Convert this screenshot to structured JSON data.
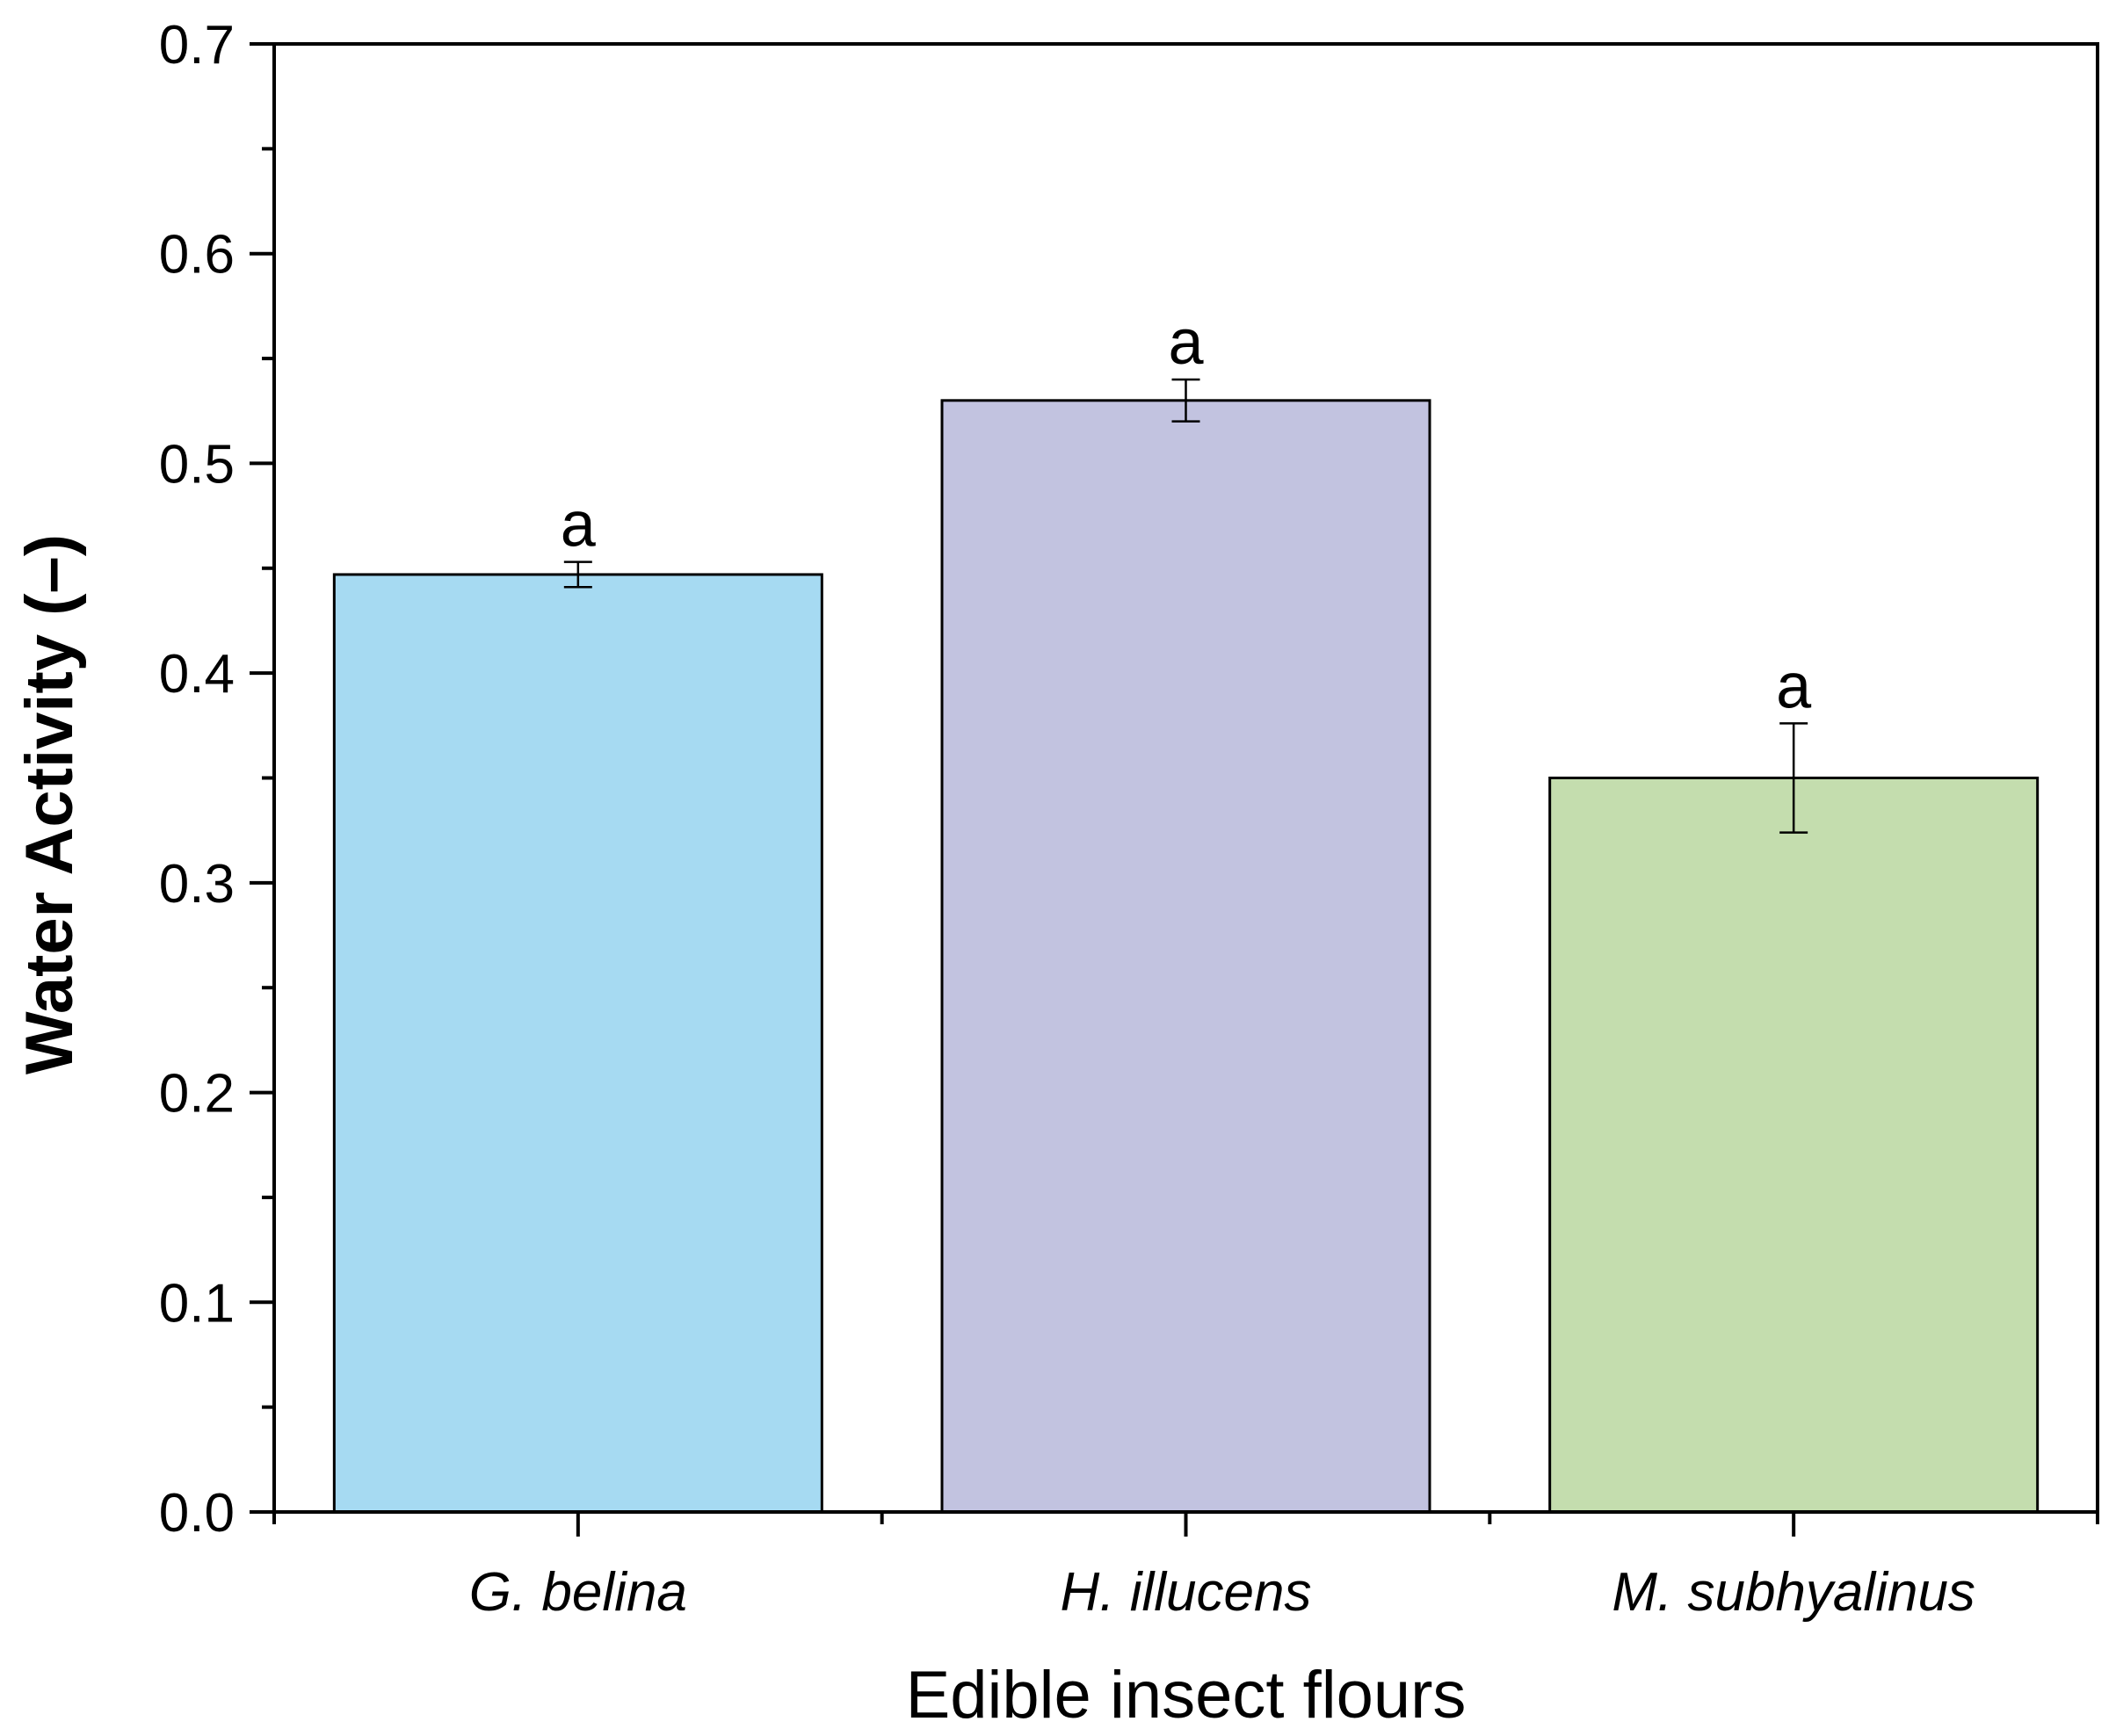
{
  "chart_data": {
    "type": "bar",
    "categories": [
      "G. belina",
      "H. illucens",
      "M. subhyalinus"
    ],
    "values": [
      0.447,
      0.53,
      0.35
    ],
    "errors": [
      0.006,
      0.01,
      0.026
    ],
    "significance_letters": [
      "a",
      "a",
      "a"
    ],
    "colors": [
      "#a6daf2",
      "#c2c3e0",
      "#c4ddae"
    ],
    "xlabel": "Edible insect flours",
    "ylabel": "Water Activity (–)",
    "ylim": [
      0,
      0.7
    ],
    "yticks": [
      "0.0",
      "0.1",
      "0.2",
      "0.3",
      "0.4",
      "0.5",
      "0.6",
      "0.7"
    ],
    "ytick_values": [
      0,
      0.1,
      0.2,
      0.3,
      0.4,
      0.5,
      0.6,
      0.7
    ],
    "grid": false,
    "frame": "box"
  }
}
